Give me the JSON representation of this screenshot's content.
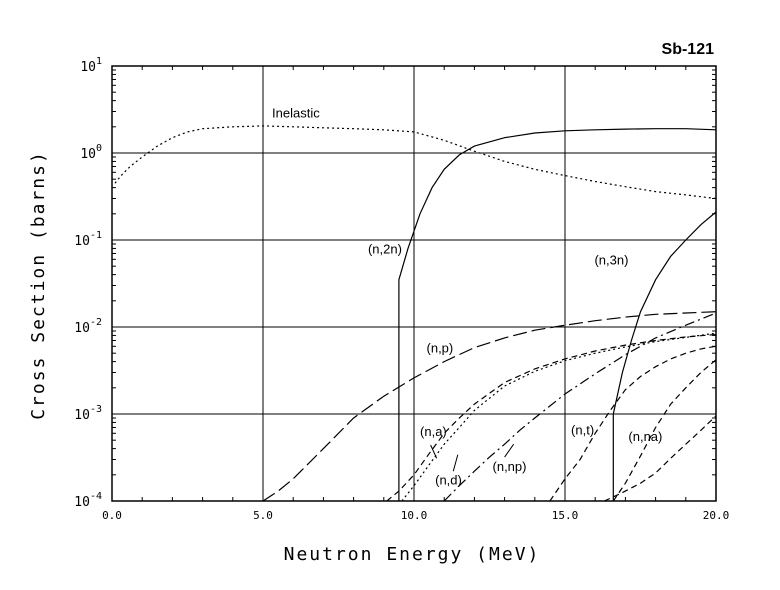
{
  "chart_data": {
    "type": "line",
    "title": "Sb-121",
    "xlabel": "Neutron Energy (MeV)",
    "ylabel": "Cross Section (barns)",
    "xlim": [
      0,
      20
    ],
    "ylim_log10": [
      -4,
      1
    ],
    "xticks": [
      "0.0",
      "5.0",
      "10.0",
      "15.0",
      "20.0"
    ],
    "yticks": [
      {
        "base": "10",
        "exp": "-4"
      },
      {
        "base": "10",
        "exp": "-3"
      },
      {
        "base": "10",
        "exp": "-2"
      },
      {
        "base": "10",
        "exp": "-1"
      },
      {
        "base": "10",
        "exp": "0"
      },
      {
        "base": "10",
        "exp": "1"
      }
    ],
    "grid": true,
    "series": [
      {
        "name": "Inelastic",
        "label": "Inelastic",
        "style": "dotted",
        "points": [
          [
            0.1,
            0.45
          ],
          [
            0.3,
            0.55
          ],
          [
            0.6,
            0.7
          ],
          [
            1.0,
            0.9
          ],
          [
            1.5,
            1.2
          ],
          [
            2.0,
            1.5
          ],
          [
            2.5,
            1.75
          ],
          [
            3.0,
            1.9
          ],
          [
            4.0,
            2.0
          ],
          [
            5.0,
            2.05
          ],
          [
            6.0,
            2.0
          ],
          [
            7.0,
            1.95
          ],
          [
            8.0,
            1.9
          ],
          [
            9.0,
            1.85
          ],
          [
            10.0,
            1.75
          ],
          [
            11.0,
            1.4
          ],
          [
            12.0,
            1.05
          ],
          [
            13.0,
            0.8
          ],
          [
            14.0,
            0.65
          ],
          [
            15.0,
            0.55
          ],
          [
            16.0,
            0.47
          ],
          [
            17.0,
            0.41
          ],
          [
            18.0,
            0.36
          ],
          [
            19.0,
            0.33
          ],
          [
            20.0,
            0.3
          ]
        ]
      },
      {
        "name": "(n,2n)",
        "label": "(n,2n)",
        "style": "solid",
        "points": [
          [
            9.5,
            0.0001
          ],
          [
            9.5,
            0.035
          ],
          [
            9.8,
            0.08
          ],
          [
            10.2,
            0.2
          ],
          [
            10.6,
            0.4
          ],
          [
            11.0,
            0.65
          ],
          [
            11.5,
            0.95
          ],
          [
            12.0,
            1.2
          ],
          [
            13.0,
            1.5
          ],
          [
            14.0,
            1.7
          ],
          [
            15.0,
            1.8
          ],
          [
            16.0,
            1.85
          ],
          [
            17.0,
            1.88
          ],
          [
            18.0,
            1.9
          ],
          [
            19.0,
            1.9
          ],
          [
            20.0,
            1.85
          ]
        ]
      },
      {
        "name": "(n,3n)",
        "label": "(n,3n)",
        "style": "solid",
        "points": [
          [
            16.6,
            0.0001
          ],
          [
            16.6,
            0.001
          ],
          [
            16.9,
            0.003
          ],
          [
            17.2,
            0.007
          ],
          [
            17.5,
            0.015
          ],
          [
            18.0,
            0.035
          ],
          [
            18.5,
            0.065
          ],
          [
            19.0,
            0.1
          ],
          [
            19.5,
            0.15
          ],
          [
            20.0,
            0.21
          ]
        ]
      },
      {
        "name": "(n,p)",
        "label": "(n,p)",
        "style": "long-dash",
        "points": [
          [
            5.0,
            0.0001
          ],
          [
            5.5,
            0.00013
          ],
          [
            6.0,
            0.00018
          ],
          [
            7.0,
            0.0004
          ],
          [
            8.0,
            0.0009
          ],
          [
            9.0,
            0.0016
          ],
          [
            10.0,
            0.0026
          ],
          [
            11.0,
            0.004
          ],
          [
            12.0,
            0.0058
          ],
          [
            13.0,
            0.0075
          ],
          [
            14.0,
            0.0092
          ],
          [
            15.0,
            0.0105
          ],
          [
            16.0,
            0.0118
          ],
          [
            17.0,
            0.013
          ],
          [
            18.0,
            0.014
          ],
          [
            19.0,
            0.0145
          ],
          [
            20.0,
            0.015
          ]
        ]
      },
      {
        "name": "(n,a)",
        "label": "(n,a)",
        "style": "dash",
        "points": [
          [
            9.1,
            0.0001
          ],
          [
            9.5,
            0.00013
          ],
          [
            10.0,
            0.0002
          ],
          [
            10.5,
            0.00035
          ],
          [
            11.0,
            0.0006
          ],
          [
            11.5,
            0.0009
          ],
          [
            12.0,
            0.0013
          ],
          [
            13.0,
            0.0023
          ],
          [
            14.0,
            0.0033
          ],
          [
            15.0,
            0.0043
          ],
          [
            16.0,
            0.0053
          ],
          [
            17.0,
            0.0062
          ],
          [
            18.0,
            0.007
          ],
          [
            19.0,
            0.0077
          ],
          [
            20.0,
            0.0082
          ]
        ]
      },
      {
        "name": "(n,d)",
        "label": "(n,d)",
        "style": "dotted",
        "points": [
          [
            9.6,
            0.0001
          ],
          [
            10.0,
            0.00015
          ],
          [
            10.5,
            0.00026
          ],
          [
            11.0,
            0.00045
          ],
          [
            11.5,
            0.0007
          ],
          [
            12.0,
            0.0011
          ],
          [
            13.0,
            0.0021
          ],
          [
            14.0,
            0.0031
          ],
          [
            15.0,
            0.0041
          ],
          [
            16.0,
            0.005
          ],
          [
            17.0,
            0.0059
          ],
          [
            18.0,
            0.0068
          ],
          [
            19.0,
            0.0076
          ],
          [
            20.0,
            0.0085
          ]
        ]
      },
      {
        "name": "(n,np)",
        "label": "(n,np)",
        "style": "dash-dot",
        "points": [
          [
            11.0,
            0.0001
          ],
          [
            11.5,
            0.00015
          ],
          [
            12.0,
            0.00022
          ],
          [
            12.5,
            0.00032
          ],
          [
            13.0,
            0.00045
          ],
          [
            13.5,
            0.00065
          ],
          [
            14.0,
            0.0009
          ],
          [
            15.0,
            0.0017
          ],
          [
            16.0,
            0.0029
          ],
          [
            17.0,
            0.0048
          ],
          [
            18.0,
            0.0075
          ],
          [
            19.0,
            0.0105
          ],
          [
            20.0,
            0.0145
          ]
        ]
      },
      {
        "name": "(n,t)",
        "label": "(n,t)",
        "style": "dash",
        "points": [
          [
            14.5,
            0.0001
          ],
          [
            15.0,
            0.00018
          ],
          [
            15.5,
            0.0003
          ],
          [
            16.0,
            0.0006
          ],
          [
            16.5,
            0.0011
          ],
          [
            17.0,
            0.0019
          ],
          [
            17.5,
            0.0027
          ],
          [
            18.0,
            0.0035
          ],
          [
            18.5,
            0.0043
          ],
          [
            19.0,
            0.005
          ],
          [
            19.5,
            0.0056
          ],
          [
            20.0,
            0.006
          ]
        ]
      },
      {
        "name": "(n,na)",
        "label": "(n,na)",
        "style": "dash",
        "points": [
          [
            16.3,
            0.0001
          ],
          [
            16.8,
            0.00012
          ],
          [
            17.5,
            0.00016
          ],
          [
            18.0,
            0.00021
          ],
          [
            18.5,
            0.00031
          ],
          [
            19.0,
            0.00045
          ],
          [
            19.5,
            0.00065
          ],
          [
            20.0,
            0.00095
          ]
        ]
      },
      {
        "name": "(n,na) upper",
        "label": "",
        "style": "dash",
        "points": [
          [
            16.6,
            0.0001
          ],
          [
            17.0,
            0.00016
          ],
          [
            17.5,
            0.00033
          ],
          [
            18.0,
            0.0007
          ],
          [
            18.5,
            0.0013
          ],
          [
            19.0,
            0.002
          ],
          [
            19.5,
            0.003
          ],
          [
            20.0,
            0.0042
          ]
        ]
      }
    ],
    "annotations": [
      "Inelastic",
      "(n,2n)",
      "(n,3n)",
      "(n,p)",
      "(n,a)",
      "(n,d)",
      "(n,np)",
      "(n,t)",
      "(n,na)"
    ]
  }
}
